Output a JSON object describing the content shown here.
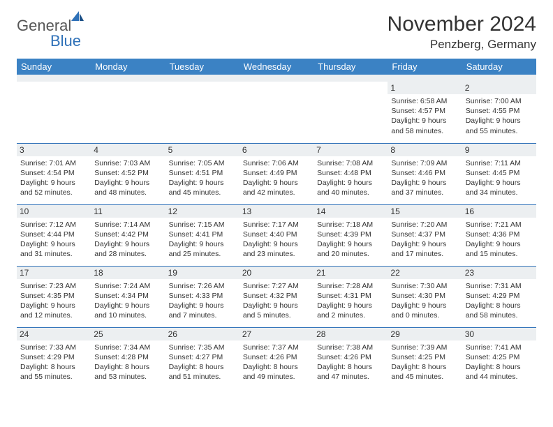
{
  "logo": {
    "part1": "General",
    "part2": "Blue"
  },
  "title": "November 2024",
  "location": "Penzberg, Germany",
  "colors": {
    "header_bg": "#3b82c4",
    "header_text": "#ffffff",
    "daynum_bg": "#eceff1",
    "separator": "#2f71b8",
    "logo_gray": "#555555",
    "logo_blue": "#2f71b8",
    "text": "#333333",
    "background": "#ffffff"
  },
  "columns": [
    "Sunday",
    "Monday",
    "Tuesday",
    "Wednesday",
    "Thursday",
    "Friday",
    "Saturday"
  ],
  "weeks": [
    [
      null,
      null,
      null,
      null,
      null,
      {
        "n": "1",
        "sr": "6:58 AM",
        "ss": "4:57 PM",
        "dl": "9 hours and 58 minutes."
      },
      {
        "n": "2",
        "sr": "7:00 AM",
        "ss": "4:55 PM",
        "dl": "9 hours and 55 minutes."
      }
    ],
    [
      {
        "n": "3",
        "sr": "7:01 AM",
        "ss": "4:54 PM",
        "dl": "9 hours and 52 minutes."
      },
      {
        "n": "4",
        "sr": "7:03 AM",
        "ss": "4:52 PM",
        "dl": "9 hours and 48 minutes."
      },
      {
        "n": "5",
        "sr": "7:05 AM",
        "ss": "4:51 PM",
        "dl": "9 hours and 45 minutes."
      },
      {
        "n": "6",
        "sr": "7:06 AM",
        "ss": "4:49 PM",
        "dl": "9 hours and 42 minutes."
      },
      {
        "n": "7",
        "sr": "7:08 AM",
        "ss": "4:48 PM",
        "dl": "9 hours and 40 minutes."
      },
      {
        "n": "8",
        "sr": "7:09 AM",
        "ss": "4:46 PM",
        "dl": "9 hours and 37 minutes."
      },
      {
        "n": "9",
        "sr": "7:11 AM",
        "ss": "4:45 PM",
        "dl": "9 hours and 34 minutes."
      }
    ],
    [
      {
        "n": "10",
        "sr": "7:12 AM",
        "ss": "4:44 PM",
        "dl": "9 hours and 31 minutes."
      },
      {
        "n": "11",
        "sr": "7:14 AM",
        "ss": "4:42 PM",
        "dl": "9 hours and 28 minutes."
      },
      {
        "n": "12",
        "sr": "7:15 AM",
        "ss": "4:41 PM",
        "dl": "9 hours and 25 minutes."
      },
      {
        "n": "13",
        "sr": "7:17 AM",
        "ss": "4:40 PM",
        "dl": "9 hours and 23 minutes."
      },
      {
        "n": "14",
        "sr": "7:18 AM",
        "ss": "4:39 PM",
        "dl": "9 hours and 20 minutes."
      },
      {
        "n": "15",
        "sr": "7:20 AM",
        "ss": "4:37 PM",
        "dl": "9 hours and 17 minutes."
      },
      {
        "n": "16",
        "sr": "7:21 AM",
        "ss": "4:36 PM",
        "dl": "9 hours and 15 minutes."
      }
    ],
    [
      {
        "n": "17",
        "sr": "7:23 AM",
        "ss": "4:35 PM",
        "dl": "9 hours and 12 minutes."
      },
      {
        "n": "18",
        "sr": "7:24 AM",
        "ss": "4:34 PM",
        "dl": "9 hours and 10 minutes."
      },
      {
        "n": "19",
        "sr": "7:26 AM",
        "ss": "4:33 PM",
        "dl": "9 hours and 7 minutes."
      },
      {
        "n": "20",
        "sr": "7:27 AM",
        "ss": "4:32 PM",
        "dl": "9 hours and 5 minutes."
      },
      {
        "n": "21",
        "sr": "7:28 AM",
        "ss": "4:31 PM",
        "dl": "9 hours and 2 minutes."
      },
      {
        "n": "22",
        "sr": "7:30 AM",
        "ss": "4:30 PM",
        "dl": "9 hours and 0 minutes."
      },
      {
        "n": "23",
        "sr": "7:31 AM",
        "ss": "4:29 PM",
        "dl": "8 hours and 58 minutes."
      }
    ],
    [
      {
        "n": "24",
        "sr": "7:33 AM",
        "ss": "4:29 PM",
        "dl": "8 hours and 55 minutes."
      },
      {
        "n": "25",
        "sr": "7:34 AM",
        "ss": "4:28 PM",
        "dl": "8 hours and 53 minutes."
      },
      {
        "n": "26",
        "sr": "7:35 AM",
        "ss": "4:27 PM",
        "dl": "8 hours and 51 minutes."
      },
      {
        "n": "27",
        "sr": "7:37 AM",
        "ss": "4:26 PM",
        "dl": "8 hours and 49 minutes."
      },
      {
        "n": "28",
        "sr": "7:38 AM",
        "ss": "4:26 PM",
        "dl": "8 hours and 47 minutes."
      },
      {
        "n": "29",
        "sr": "7:39 AM",
        "ss": "4:25 PM",
        "dl": "8 hours and 45 minutes."
      },
      {
        "n": "30",
        "sr": "7:41 AM",
        "ss": "4:25 PM",
        "dl": "8 hours and 44 minutes."
      }
    ]
  ],
  "labels": {
    "sunrise": "Sunrise:",
    "sunset": "Sunset:",
    "daylight": "Daylight:"
  }
}
